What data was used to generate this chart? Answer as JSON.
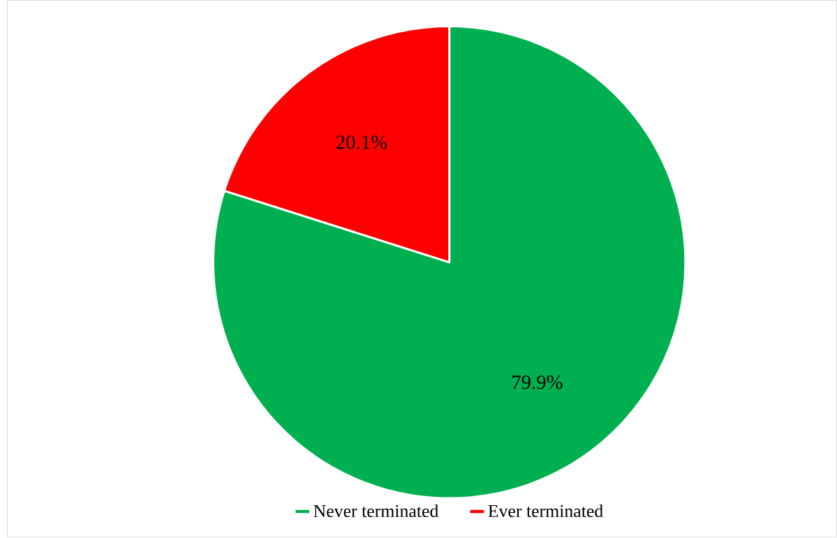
{
  "chart_data": {
    "type": "pie",
    "categories": [
      "Never terminated",
      "Ever terminated"
    ],
    "values": [
      79.9,
      20.1
    ],
    "colors": [
      "#00b050",
      "#ff0000"
    ],
    "value_labels": [
      "79.9%",
      "20.1%"
    ],
    "legend": "bottom"
  }
}
